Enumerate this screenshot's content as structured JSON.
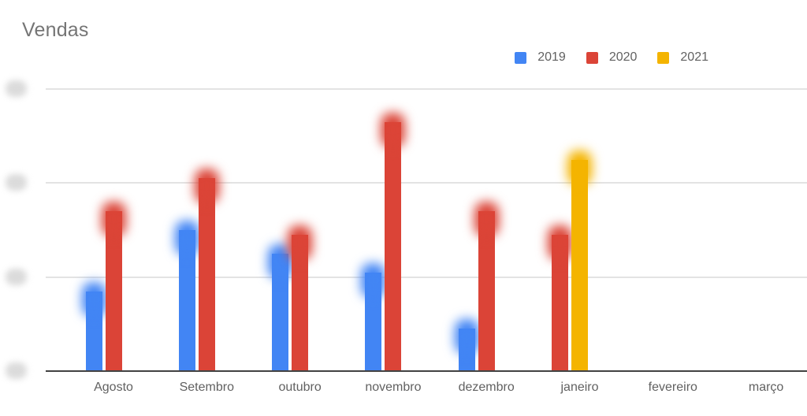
{
  "title": "Vendas",
  "legend": {
    "items": [
      {
        "label": "2019",
        "color": "#4285F4"
      },
      {
        "label": "2020",
        "color": "#DB4437"
      },
      {
        "label": "2021",
        "color": "#F4B400"
      }
    ]
  },
  "chart_data": {
    "type": "bar",
    "title": "Vendas",
    "categories": [
      "Agosto",
      "Setembro",
      "outubro",
      "novembro",
      "dezembro",
      "janeiro",
      "fevereiro",
      "março"
    ],
    "series": [
      {
        "name": "2019",
        "color": "#4285F4",
        "values": [
          0.85,
          1.5,
          1.25,
          1.05,
          0.45,
          null,
          null,
          null
        ]
      },
      {
        "name": "2020",
        "color": "#DB4437",
        "values": [
          1.7,
          2.05,
          1.45,
          2.65,
          1.7,
          1.45,
          null,
          null
        ]
      },
      {
        "name": "2021",
        "color": "#F4B400",
        "values": [
          null,
          null,
          null,
          null,
          null,
          2.25,
          null,
          null
        ]
      }
    ],
    "ylim": [
      0,
      3
    ],
    "y_gridline_values": [
      0,
      1,
      2,
      3
    ],
    "y_axis_labels": "redacted-blurred",
    "bar_tops": "blurred",
    "grid": true,
    "legend_position": "top-right"
  },
  "colors": {
    "background": "#FFFFFF",
    "title_text": "#757575",
    "axis_label_text": "#616161",
    "legend_text": "#616161",
    "gridline": "#E3E3E3",
    "baseline": "#424242",
    "redaction_blob": "#DBDBDB"
  }
}
